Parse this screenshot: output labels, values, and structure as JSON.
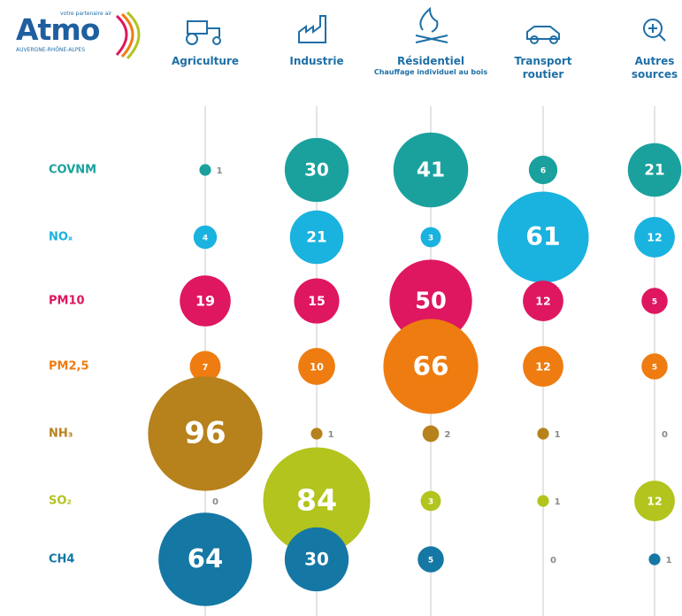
{
  "logo": {
    "tagline": "votre partenaire air",
    "name": "Atmo",
    "region": "AUVERGNE-RHÔNE-ALPES"
  },
  "chart_data": {
    "type": "bubble",
    "categories": [
      "Agriculture",
      "Industrie",
      "Résidentiel",
      "Transport routier",
      "Autres sources"
    ],
    "category_subtitles": [
      null,
      null,
      "Chauffage individuel au bois",
      null,
      null
    ],
    "series": [
      {
        "name": "COVNM",
        "color": "#1aa19e",
        "values": [
          1,
          30,
          41,
          6,
          21
        ]
      },
      {
        "name": "NOₓ",
        "color": "#1ab2df",
        "values": [
          4,
          21,
          3,
          61,
          12
        ]
      },
      {
        "name": "PM10",
        "color": "#df1660",
        "values": [
          19,
          15,
          50,
          12,
          5
        ]
      },
      {
        "name": "PM2,5",
        "color": "#ee7c10",
        "values": [
          7,
          10,
          66,
          12,
          5
        ]
      },
      {
        "name": "NH₃",
        "color": "#b7811b",
        "values": [
          96,
          1,
          2,
          1,
          0
        ]
      },
      {
        "name": "SO₂",
        "color": "#b2c41d",
        "values": [
          0,
          84,
          3,
          1,
          12
        ]
      },
      {
        "name": "CH4",
        "color": "#1577a4",
        "values": [
          64,
          30,
          5,
          0,
          1
        ]
      }
    ]
  }
}
